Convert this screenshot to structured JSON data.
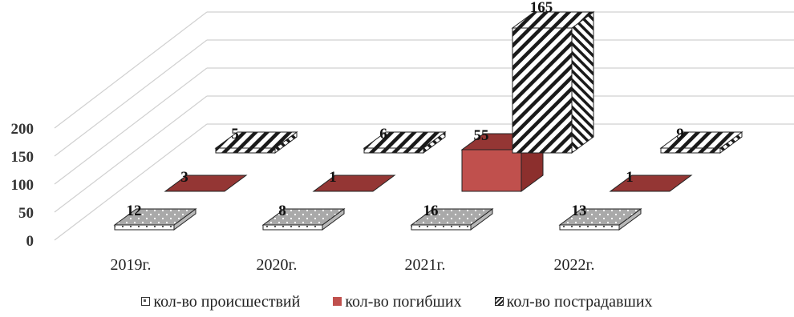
{
  "chart_data": {
    "type": "bar3d",
    "categories": [
      "2019г.",
      "2020г.",
      "2021г.",
      "2022г."
    ],
    "series": [
      {
        "name": "кол-во происшествий",
        "values": [
          12,
          8,
          16,
          13
        ],
        "pattern": "dotted",
        "color": "#ffffff"
      },
      {
        "name": "кол-во погибших",
        "values": [
          3,
          1,
          55,
          1
        ],
        "pattern": "solid",
        "color": "#c0504d"
      },
      {
        "name": "кол-во пострадавших",
        "values": [
          5,
          6,
          165,
          9
        ],
        "pattern": "diagonal-stripes",
        "color": "#222222"
      }
    ],
    "y_ticks": [
      "0",
      "50",
      "100",
      "150",
      "200"
    ],
    "ylim": [
      0,
      200
    ],
    "grid": true,
    "legend_position": "bottom"
  }
}
